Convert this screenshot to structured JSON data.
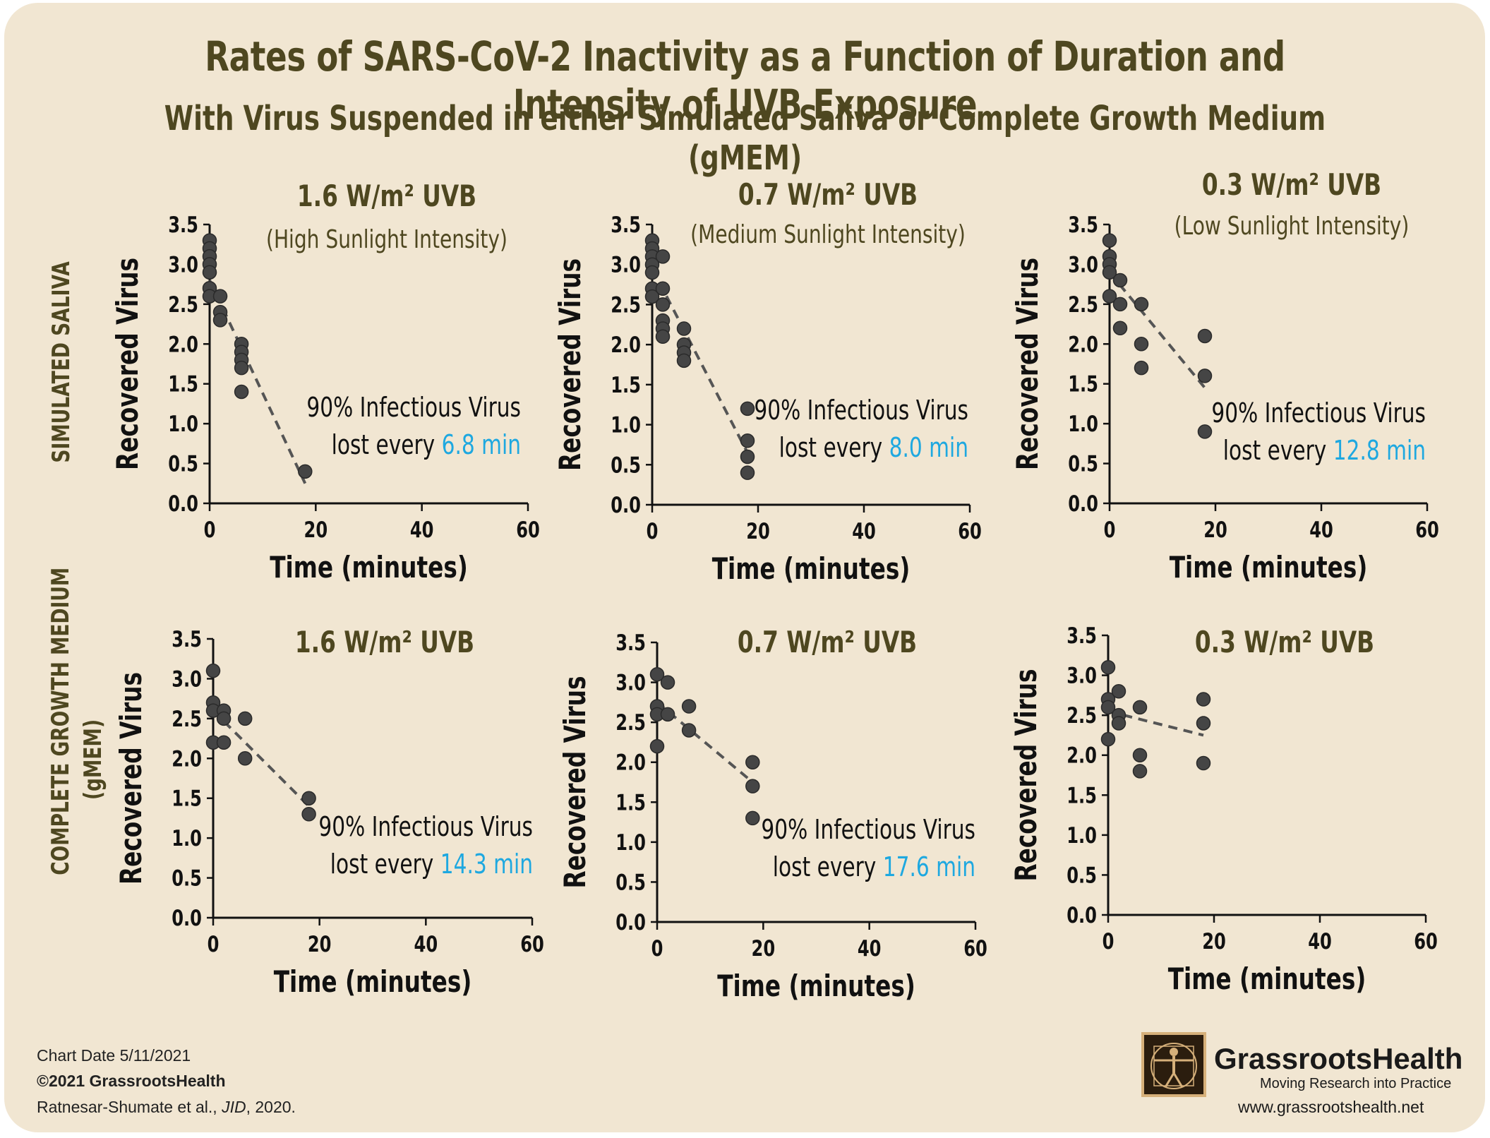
{
  "header": {
    "title": "Rates of SARS-CoV-2 Inactivity as a Function of Duration and Intensity of UVB Exposure",
    "subtitle": "With Virus Suspended in either Simulated Saliva or Complete Growth Medium (gMEM)"
  },
  "rows": {
    "saliva": "SIMULATED SALIVA",
    "gmem_line1": "COMPLETE GROWTH MEDIUM",
    "gmem_line2": "(gMEM)"
  },
  "colors": {
    "text": "#4e4720",
    "marker": "#454545",
    "highlight": "#1ea8e0",
    "background": "#f1e6d2"
  },
  "chart_data": [
    {
      "type": "scatter",
      "row": "saliva",
      "title": "1.6 W/m² UVB",
      "subtitle": "(High Sunlight Intensity)",
      "xlabel": "Time (minutes)",
      "ylabel": "Recovered Virus",
      "xlim": [
        0,
        60
      ],
      "ylim": [
        0,
        3.5
      ],
      "xticks": [
        "0",
        "20",
        "40",
        "60"
      ],
      "yticks": [
        "0.0",
        "0.5",
        "1.0",
        "1.5",
        "2.0",
        "2.5",
        "3.0",
        "3.5"
      ],
      "points": [
        [
          0,
          3.3
        ],
        [
          0,
          3.2
        ],
        [
          0,
          3.1
        ],
        [
          0,
          3.0
        ],
        [
          0,
          2.9
        ],
        [
          0,
          2.7
        ],
        [
          0,
          2.6
        ],
        [
          2,
          2.6
        ],
        [
          2,
          2.4
        ],
        [
          2,
          2.3
        ],
        [
          6,
          2.0
        ],
        [
          6,
          1.9
        ],
        [
          6,
          1.8
        ],
        [
          6,
          1.7
        ],
        [
          6,
          1.4
        ],
        [
          18,
          0.4
        ]
      ],
      "trend": [
        [
          0,
          2.8
        ],
        [
          18,
          0.25
        ]
      ],
      "annotation": {
        "line1": "90% Infectious Virus",
        "prefix": "lost every",
        "value": "6.8 min"
      }
    },
    {
      "type": "scatter",
      "row": "saliva",
      "title": "0.7 W/m² UVB",
      "subtitle": "(Medium Sunlight Intensity)",
      "xlabel": "Time (minutes)",
      "ylabel": "Recovered Virus",
      "xlim": [
        0,
        60
      ],
      "ylim": [
        0,
        3.5
      ],
      "xticks": [
        "0",
        "20",
        "40",
        "60"
      ],
      "yticks": [
        "0.0",
        "0.5",
        "1.0",
        "1.5",
        "2.0",
        "2.5",
        "3.0",
        "3.5"
      ],
      "points": [
        [
          0,
          3.3
        ],
        [
          0,
          3.2
        ],
        [
          0,
          3.1
        ],
        [
          0,
          3.0
        ],
        [
          0,
          2.9
        ],
        [
          0,
          2.7
        ],
        [
          0,
          2.6
        ],
        [
          2,
          3.1
        ],
        [
          2,
          2.7
        ],
        [
          2,
          2.5
        ],
        [
          2,
          2.3
        ],
        [
          2,
          2.2
        ],
        [
          2,
          2.1
        ],
        [
          6,
          2.2
        ],
        [
          6,
          2.0
        ],
        [
          6,
          1.9
        ],
        [
          6,
          1.8
        ],
        [
          18,
          1.2
        ],
        [
          18,
          0.8
        ],
        [
          18,
          0.6
        ],
        [
          18,
          0.4
        ]
      ],
      "trend": [
        [
          0,
          2.95
        ],
        [
          18,
          0.65
        ]
      ],
      "annotation": {
        "line1": "90% Infectious Virus",
        "prefix": "lost every",
        "value": "8.0 min"
      }
    },
    {
      "type": "scatter",
      "row": "saliva",
      "title": "0.3 W/m² UVB",
      "subtitle": "(Low Sunlight Intensity)",
      "xlabel": "Time (minutes)",
      "ylabel": "Recovered Virus",
      "xlim": [
        0,
        60
      ],
      "ylim": [
        0,
        3.5
      ],
      "xticks": [
        "0",
        "20",
        "40",
        "60"
      ],
      "yticks": [
        "0.0",
        "0.5",
        "1.0",
        "1.5",
        "2.0",
        "2.5",
        "3.0",
        "3.5"
      ],
      "points": [
        [
          0,
          3.3
        ],
        [
          0,
          3.1
        ],
        [
          0,
          3.0
        ],
        [
          0,
          2.9
        ],
        [
          0,
          2.6
        ],
        [
          2,
          2.8
        ],
        [
          2,
          2.5
        ],
        [
          2,
          2.2
        ],
        [
          6,
          2.5
        ],
        [
          6,
          2.0
        ],
        [
          6,
          1.7
        ],
        [
          18,
          2.1
        ],
        [
          18,
          1.6
        ],
        [
          18,
          0.9
        ]
      ],
      "trend": [
        [
          0,
          2.9
        ],
        [
          18,
          1.45
        ]
      ],
      "annotation": {
        "line1": "90% Infectious Virus",
        "prefix": "lost every",
        "value": "12.8 min"
      }
    },
    {
      "type": "scatter",
      "row": "gmem",
      "title": "1.6 W/m² UVB",
      "subtitle": "",
      "xlabel": "Time (minutes)",
      "ylabel": "Recovered Virus",
      "xlim": [
        0,
        60
      ],
      "ylim": [
        0,
        3.5
      ],
      "xticks": [
        "0",
        "20",
        "40",
        "60"
      ],
      "yticks": [
        "0.0",
        "0.5",
        "1.0",
        "1.5",
        "2.0",
        "2.5",
        "3.0",
        "3.5"
      ],
      "points": [
        [
          0,
          3.1
        ],
        [
          0,
          2.7
        ],
        [
          0,
          2.6
        ],
        [
          0,
          2.2
        ],
        [
          2,
          2.6
        ],
        [
          2,
          2.5
        ],
        [
          2,
          2.2
        ],
        [
          6,
          2.5
        ],
        [
          6,
          2.0
        ],
        [
          18,
          1.5
        ],
        [
          18,
          1.3
        ]
      ],
      "trend": [
        [
          0,
          2.6
        ],
        [
          18,
          1.4
        ]
      ],
      "annotation": {
        "line1": "90% Infectious Virus",
        "prefix": "lost every",
        "value": "14.3 min"
      }
    },
    {
      "type": "scatter",
      "row": "gmem",
      "title": "0.7 W/m² UVB",
      "subtitle": "",
      "xlabel": "Time (minutes)",
      "ylabel": "Recovered Virus",
      "xlim": [
        0,
        60
      ],
      "ylim": [
        0,
        3.5
      ],
      "xticks": [
        "0",
        "20",
        "40",
        "60"
      ],
      "yticks": [
        "0.0",
        "0.5",
        "1.0",
        "1.5",
        "2.0",
        "2.5",
        "3.0",
        "3.5"
      ],
      "points": [
        [
          0,
          3.1
        ],
        [
          0,
          2.7
        ],
        [
          0,
          2.6
        ],
        [
          0,
          2.2
        ],
        [
          2,
          3.0
        ],
        [
          2,
          2.6
        ],
        [
          6,
          2.7
        ],
        [
          6,
          2.4
        ],
        [
          18,
          2.0
        ],
        [
          18,
          1.7
        ],
        [
          18,
          1.3
        ]
      ],
      "trend": [
        [
          0,
          2.75
        ],
        [
          18,
          1.75
        ]
      ],
      "annotation": {
        "line1": "90% Infectious Virus",
        "prefix": "lost every",
        "value": "17.6 min"
      }
    },
    {
      "type": "scatter",
      "row": "gmem",
      "title": "0.3 W/m² UVB",
      "subtitle": "",
      "xlabel": "Time (minutes)",
      "ylabel": "Recovered Virus",
      "xlim": [
        0,
        60
      ],
      "ylim": [
        0,
        3.5
      ],
      "xticks": [
        "0",
        "20",
        "40",
        "60"
      ],
      "yticks": [
        "0.0",
        "0.5",
        "1.0",
        "1.5",
        "2.0",
        "2.5",
        "3.0",
        "3.5"
      ],
      "points": [
        [
          0,
          3.1
        ],
        [
          0,
          2.7
        ],
        [
          0,
          2.6
        ],
        [
          0,
          2.2
        ],
        [
          2,
          2.8
        ],
        [
          2,
          2.5
        ],
        [
          2,
          2.4
        ],
        [
          6,
          2.6
        ],
        [
          6,
          2.0
        ],
        [
          6,
          1.8
        ],
        [
          18,
          2.7
        ],
        [
          18,
          2.4
        ],
        [
          18,
          1.9
        ]
      ],
      "trend": [
        [
          0,
          2.55
        ],
        [
          18,
          2.25
        ]
      ],
      "annotation": null
    }
  ],
  "footer": {
    "chart_date": "Chart Date 5/11/2021",
    "copyright": "©2021 GrassrootsHealth",
    "citation": "Ratnesar-Shumate et al., JID, 2020.",
    "brand_name": "GrassrootsHealth",
    "brand_tagline": "Moving Research into Practice",
    "brand_url": "www.grassrootshealth.net",
    "logo_icon": "vitruvian-man-icon"
  }
}
